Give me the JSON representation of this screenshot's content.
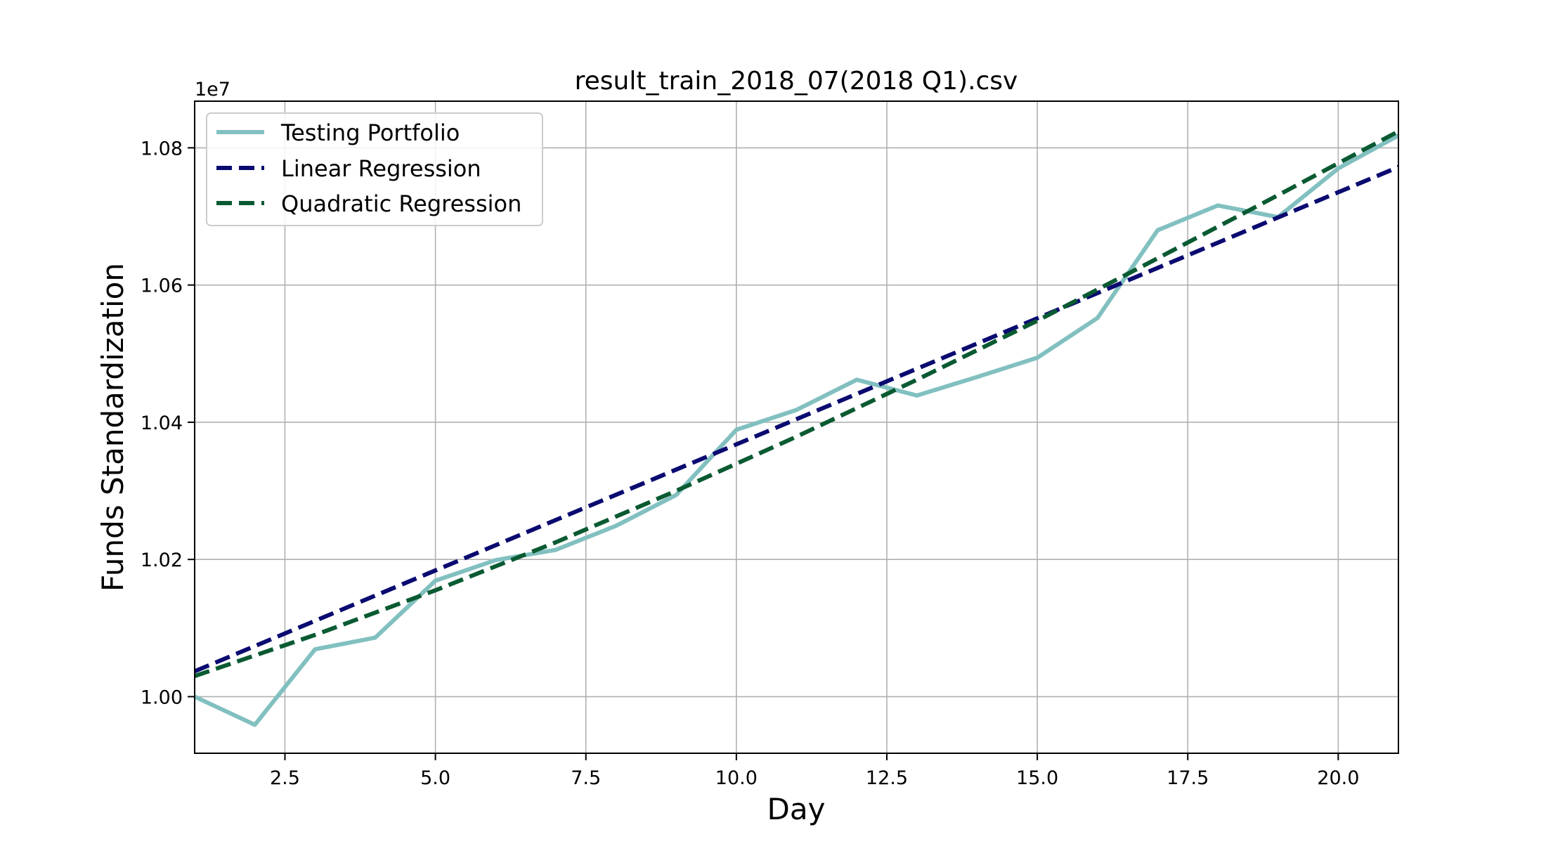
{
  "chart_data": {
    "type": "line",
    "title": "result_train_2018_07(2018 Q1).csv",
    "xlabel": "Day",
    "ylabel": "Funds Standardization",
    "y_offset_label": "1e7",
    "xlim": [
      1,
      21
    ],
    "ylim": [
      0.99175,
      1.0868
    ],
    "x_ticks": [
      2.5,
      5.0,
      7.5,
      10.0,
      12.5,
      15.0,
      17.5,
      20.0
    ],
    "x_tick_labels": [
      "2.5",
      "5.0",
      "7.5",
      "10.0",
      "12.5",
      "15.0",
      "17.5",
      "20.0"
    ],
    "y_ticks": [
      1.0,
      1.02,
      1.04,
      1.06,
      1.08
    ],
    "y_tick_labels": [
      "1.00",
      "1.02",
      "1.04",
      "1.06",
      "1.08"
    ],
    "grid": true,
    "legend_position": "top-left",
    "series": [
      {
        "name": "Testing Portfolio",
        "style": "solid",
        "color": "#82c0c0",
        "x": [
          1,
          2,
          3,
          4,
          5,
          6,
          7,
          8,
          9,
          10,
          11,
          12,
          13,
          14,
          15,
          16,
          17,
          18,
          19,
          20,
          21
        ],
        "y": [
          1.0,
          0.9959,
          1.0069,
          1.0086,
          1.0169,
          1.0199,
          1.0214,
          1.0249,
          1.0294,
          1.0389,
          1.0418,
          1.0462,
          1.0439,
          1.0466,
          1.0494,
          1.0552,
          1.068,
          1.0716,
          1.0699,
          1.077,
          1.0818
        ]
      },
      {
        "name": "Linear Regression",
        "style": "dashed",
        "color": "#0a0a70",
        "x": [
          1,
          21
        ],
        "y": [
          1.0037,
          1.0772
        ]
      },
      {
        "name": "Quadratic Regression",
        "style": "dashed",
        "color": "#0a5a32",
        "x": [
          1,
          3,
          5,
          7,
          9,
          11,
          13,
          15,
          17,
          19,
          21
        ],
        "y": [
          1.003,
          1.009,
          1.0155,
          1.0225,
          1.03,
          1.0379,
          1.0462,
          1.0548,
          1.0639,
          1.0731,
          1.0824
        ]
      }
    ]
  }
}
